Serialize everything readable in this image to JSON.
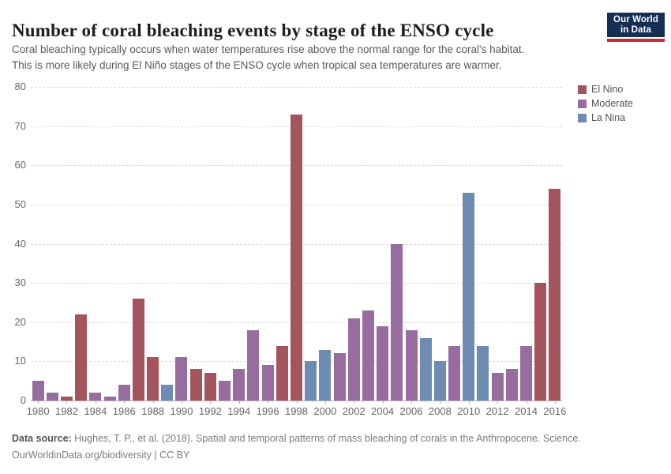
{
  "header": {
    "title": "Number of coral bleaching events by stage of the ENSO cycle",
    "subtitle_line1": "Coral bleaching typically occurs when water temperatures rise above the normal range for the coral's habitat.",
    "subtitle_line2": "This is more likely during El Niño stages of the ENSO cycle when tropical sea temperatures are warmer.",
    "logo": {
      "line1": "Our World",
      "line2": "in Data",
      "bg_color": "#152e54",
      "accent_color": "#c52b38"
    }
  },
  "legend": [
    {
      "id": "el_nino",
      "label": "El Nino",
      "color": "#a4545c"
    },
    {
      "id": "moderate",
      "label": "Moderate",
      "color": "#976da0"
    },
    {
      "id": "la_nina",
      "label": "La Nina",
      "color": "#6e8bb2"
    }
  ],
  "chart_data": {
    "type": "bar",
    "title": "Number of coral bleaching events by stage of the ENSO cycle",
    "xlabel": "",
    "ylabel": "",
    "ylim": [
      0,
      80
    ],
    "yticks": [
      0,
      10,
      20,
      30,
      40,
      50,
      60,
      70,
      80
    ],
    "xtick_labels": [
      "1980",
      "1982",
      "1984",
      "1986",
      "1988",
      "1990",
      "1992",
      "1994",
      "1996",
      "1998",
      "2000",
      "2002",
      "2004",
      "2006",
      "2008",
      "2010",
      "2012",
      "2014",
      "2016"
    ],
    "grid": "horizontal-dashed",
    "legend_position": "top-right",
    "points": [
      {
        "year": 1980,
        "value": 5,
        "stage": "moderate"
      },
      {
        "year": 1981,
        "value": 2,
        "stage": "moderate"
      },
      {
        "year": 1982,
        "value": 1,
        "stage": "el_nino"
      },
      {
        "year": 1983,
        "value": 22,
        "stage": "el_nino"
      },
      {
        "year": 1984,
        "value": 2,
        "stage": "moderate"
      },
      {
        "year": 1985,
        "value": 1,
        "stage": "moderate"
      },
      {
        "year": 1986,
        "value": 4,
        "stage": "moderate"
      },
      {
        "year": 1987,
        "value": 26,
        "stage": "el_nino"
      },
      {
        "year": 1988,
        "value": 11,
        "stage": "el_nino"
      },
      {
        "year": 1989,
        "value": 4,
        "stage": "la_nina"
      },
      {
        "year": 1990,
        "value": 11,
        "stage": "moderate"
      },
      {
        "year": 1991,
        "value": 8,
        "stage": "el_nino"
      },
      {
        "year": 1992,
        "value": 7,
        "stage": "el_nino"
      },
      {
        "year": 1993,
        "value": 5,
        "stage": "moderate"
      },
      {
        "year": 1994,
        "value": 8,
        "stage": "moderate"
      },
      {
        "year": 1995,
        "value": 18,
        "stage": "moderate"
      },
      {
        "year": 1996,
        "value": 9,
        "stage": "moderate"
      },
      {
        "year": 1997,
        "value": 14,
        "stage": "el_nino"
      },
      {
        "year": 1998,
        "value": 73,
        "stage": "el_nino"
      },
      {
        "year": 1999,
        "value": 10,
        "stage": "la_nina"
      },
      {
        "year": 2000,
        "value": 13,
        "stage": "la_nina"
      },
      {
        "year": 2001,
        "value": 12,
        "stage": "moderate"
      },
      {
        "year": 2002,
        "value": 21,
        "stage": "moderate"
      },
      {
        "year": 2003,
        "value": 23,
        "stage": "moderate"
      },
      {
        "year": 2004,
        "value": 19,
        "stage": "moderate"
      },
      {
        "year": 2005,
        "value": 40,
        "stage": "moderate"
      },
      {
        "year": 2006,
        "value": 18,
        "stage": "moderate"
      },
      {
        "year": 2007,
        "value": 16,
        "stage": "la_nina"
      },
      {
        "year": 2008,
        "value": 10,
        "stage": "la_nina"
      },
      {
        "year": 2009,
        "value": 14,
        "stage": "moderate"
      },
      {
        "year": 2010,
        "value": 53,
        "stage": "la_nina"
      },
      {
        "year": 2011,
        "value": 14,
        "stage": "la_nina"
      },
      {
        "year": 2012,
        "value": 7,
        "stage": "moderate"
      },
      {
        "year": 2013,
        "value": 8,
        "stage": "moderate"
      },
      {
        "year": 2014,
        "value": 14,
        "stage": "moderate"
      },
      {
        "year": 2015,
        "value": 30,
        "stage": "el_nino"
      },
      {
        "year": 2016,
        "value": 54,
        "stage": "el_nino"
      }
    ]
  },
  "footer": {
    "source_label": "Data source:",
    "source_text": " Hughes, T. P., et al. (2018). Spatial and temporal patterns of mass bleaching of corals in the Anthropocene. Science.",
    "credit": "OurWorldinData.org/biodiversity | CC BY"
  }
}
